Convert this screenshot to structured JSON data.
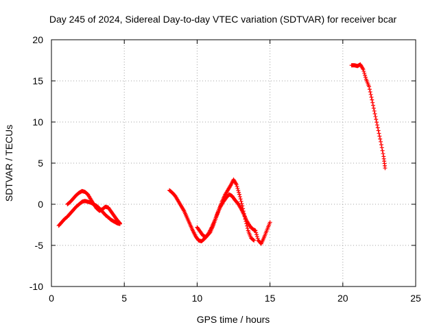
{
  "chart_data": {
    "type": "scatter",
    "title": "Day 245 of 2024, Sidereal Day-to-day VTEC variation (SDTVAR) for receiver bcar",
    "xlabel": "GPS time / hours",
    "ylabel": "SDTVAR / TECUs",
    "xlim": [
      0,
      25
    ],
    "ylim": [
      -10,
      20
    ],
    "xticks": [
      0,
      5,
      10,
      15,
      20,
      25
    ],
    "yticks": [
      -10,
      -5,
      0,
      5,
      10,
      15,
      20
    ],
    "xtick_labels": [
      "0",
      "5",
      "10",
      "15",
      "20",
      "25"
    ],
    "ytick_labels": [
      "-10",
      "-5",
      "0",
      "5",
      "10",
      "15",
      "20"
    ],
    "grid": true,
    "marker": "+",
    "color": "#ff0000",
    "series": [
      {
        "name": "segment-1a",
        "points": [
          [
            0.5,
            -2.6
          ],
          [
            0.7,
            -2.2
          ],
          [
            0.9,
            -1.8
          ],
          [
            1.1,
            -1.5
          ],
          [
            1.3,
            -1.1
          ],
          [
            1.5,
            -0.7
          ],
          [
            1.7,
            -0.3
          ],
          [
            1.9,
            0.0
          ],
          [
            2.1,
            0.3
          ],
          [
            2.3,
            0.4
          ],
          [
            2.5,
            0.3
          ],
          [
            2.7,
            0.2
          ],
          [
            2.9,
            0.0
          ],
          [
            3.1,
            -0.2
          ],
          [
            3.3,
            -0.5
          ],
          [
            3.5,
            -0.9
          ],
          [
            3.7,
            -1.3
          ],
          [
            3.9,
            -1.6
          ],
          [
            4.1,
            -1.9
          ],
          [
            4.3,
            -2.1
          ],
          [
            4.5,
            -2.3
          ],
          [
            4.7,
            -2.4
          ]
        ]
      },
      {
        "name": "segment-1b",
        "points": [
          [
            1.1,
            0.0
          ],
          [
            1.3,
            0.3
          ],
          [
            1.5,
            0.7
          ],
          [
            1.7,
            1.1
          ],
          [
            1.9,
            1.4
          ],
          [
            2.1,
            1.6
          ],
          [
            2.3,
            1.5
          ],
          [
            2.5,
            1.2
          ],
          [
            2.7,
            0.6
          ],
          [
            2.9,
            0.0
          ],
          [
            3.1,
            -0.5
          ],
          [
            3.3,
            -0.8
          ],
          [
            3.5,
            -0.6
          ],
          [
            3.7,
            -0.3
          ],
          [
            3.9,
            -0.4
          ],
          [
            4.1,
            -0.9
          ],
          [
            4.3,
            -1.4
          ],
          [
            4.5,
            -1.9
          ],
          [
            4.7,
            -2.3
          ]
        ]
      },
      {
        "name": "segment-2a",
        "points": [
          [
            8.1,
            1.7
          ],
          [
            8.3,
            1.4
          ],
          [
            8.5,
            1.0
          ],
          [
            8.7,
            0.4
          ],
          [
            8.9,
            -0.2
          ],
          [
            9.1,
            -0.8
          ],
          [
            9.3,
            -1.6
          ],
          [
            9.5,
            -2.4
          ],
          [
            9.7,
            -3.2
          ],
          [
            9.9,
            -3.9
          ],
          [
            10.1,
            -4.4
          ],
          [
            10.3,
            -4.5
          ],
          [
            10.5,
            -4.2
          ],
          [
            10.7,
            -3.8
          ],
          [
            10.9,
            -3.4
          ],
          [
            11.1,
            -2.6
          ],
          [
            11.3,
            -1.6
          ],
          [
            11.5,
            -0.6
          ],
          [
            11.7,
            0.3
          ],
          [
            11.9,
            1.1
          ],
          [
            12.1,
            1.7
          ],
          [
            12.3,
            2.3
          ],
          [
            12.5,
            3.0
          ],
          [
            12.7,
            2.4
          ],
          [
            12.9,
            1.2
          ],
          [
            13.1,
            -0.2
          ],
          [
            13.3,
            -1.8
          ],
          [
            13.5,
            -3.2
          ],
          [
            13.7,
            -4.1
          ],
          [
            13.9,
            -4.4
          ]
        ]
      },
      {
        "name": "segment-2b",
        "points": [
          [
            10.0,
            -2.8
          ],
          [
            10.2,
            -3.3
          ],
          [
            10.4,
            -3.8
          ],
          [
            10.6,
            -4.0
          ],
          [
            10.8,
            -3.5
          ],
          [
            11.0,
            -2.8
          ],
          [
            11.2,
            -2.0
          ],
          [
            11.4,
            -1.1
          ],
          [
            11.6,
            -0.3
          ],
          [
            11.8,
            0.3
          ],
          [
            12.0,
            0.8
          ],
          [
            12.2,
            1.2
          ],
          [
            12.4,
            1.0
          ],
          [
            12.6,
            0.5
          ],
          [
            12.8,
            0.1
          ],
          [
            13.0,
            -0.5
          ],
          [
            13.2,
            -1.2
          ],
          [
            13.4,
            -2.0
          ],
          [
            13.6,
            -2.6
          ],
          [
            13.8,
            -3.0
          ],
          [
            14.0,
            -3.2
          ],
          [
            14.2,
            -4.4
          ],
          [
            14.4,
            -4.8
          ],
          [
            14.6,
            -4.0
          ],
          [
            14.8,
            -3.1
          ],
          [
            15.0,
            -2.2
          ]
        ]
      },
      {
        "name": "segment-3",
        "points": [
          [
            20.6,
            16.9
          ],
          [
            20.8,
            16.9
          ],
          [
            21.0,
            16.8
          ],
          [
            21.2,
            17.0
          ],
          [
            21.4,
            16.4
          ],
          [
            21.6,
            15.2
          ],
          [
            21.8,
            14.3
          ],
          [
            22.0,
            12.7
          ],
          [
            22.2,
            11.0
          ],
          [
            22.4,
            9.3
          ],
          [
            22.6,
            7.6
          ],
          [
            22.8,
            5.8
          ],
          [
            22.9,
            4.4
          ]
        ]
      }
    ]
  }
}
